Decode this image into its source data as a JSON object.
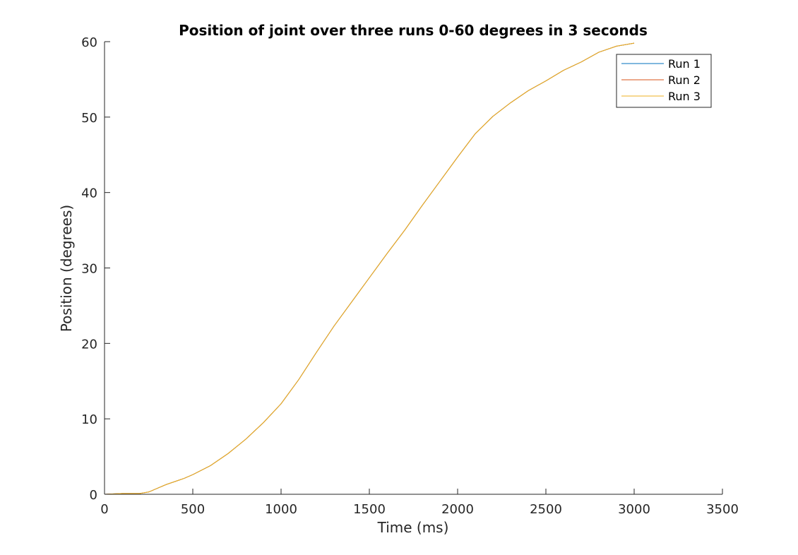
{
  "chart_data": {
    "type": "line",
    "title": "Position of joint over three runs 0-60 degrees in 3 seconds",
    "xlabel": "Time (ms)",
    "ylabel": "Position (degrees)",
    "xlim": [
      0,
      3500
    ],
    "ylim": [
      0,
      60
    ],
    "xticks": [
      0,
      500,
      1000,
      1500,
      2000,
      2500,
      3000,
      3500
    ],
    "yticks": [
      0,
      10,
      20,
      30,
      40,
      50,
      60
    ],
    "grid": false,
    "legend_position": "top-right",
    "series": [
      {
        "name": "Run 1",
        "color": "#0072BD",
        "x": [
          0,
          100,
          200,
          250,
          300,
          350,
          400,
          450,
          500,
          600,
          700,
          800,
          900,
          1000,
          1100,
          1200,
          1300,
          1400,
          1500,
          1600,
          1700,
          1800,
          1900,
          2000,
          2100,
          2200,
          2300,
          2400,
          2500,
          2600,
          2700,
          2800,
          2900,
          3000
        ],
        "y": [
          0,
          0.1,
          0.1,
          0.3,
          0.8,
          1.3,
          1.7,
          2.1,
          2.6,
          3.8,
          5.4,
          7.3,
          9.5,
          12.0,
          15.2,
          18.8,
          22.3,
          25.5,
          28.7,
          31.9,
          35.0,
          38.3,
          41.5,
          44.7,
          47.8,
          50.1,
          51.9,
          53.5,
          54.8,
          56.2,
          57.3,
          58.6,
          59.4,
          59.8
        ]
      },
      {
        "name": "Run 2",
        "color": "#D95319",
        "x": [
          0,
          100,
          200,
          250,
          300,
          350,
          400,
          450,
          500,
          600,
          700,
          800,
          900,
          1000,
          1100,
          1200,
          1300,
          1400,
          1500,
          1600,
          1700,
          1800,
          1900,
          2000,
          2100,
          2200,
          2300,
          2400,
          2500,
          2600,
          2700,
          2800,
          2900,
          3000
        ],
        "y": [
          0,
          0.1,
          0.1,
          0.3,
          0.8,
          1.3,
          1.7,
          2.1,
          2.6,
          3.8,
          5.4,
          7.3,
          9.5,
          12.0,
          15.2,
          18.8,
          22.3,
          25.5,
          28.7,
          31.9,
          35.0,
          38.3,
          41.5,
          44.7,
          47.8,
          50.1,
          51.9,
          53.5,
          54.8,
          56.2,
          57.3,
          58.6,
          59.4,
          59.8
        ]
      },
      {
        "name": "Run 3",
        "color": "#EDB120",
        "x": [
          0,
          100,
          200,
          250,
          300,
          350,
          400,
          450,
          500,
          600,
          700,
          800,
          900,
          1000,
          1100,
          1200,
          1300,
          1400,
          1500,
          1600,
          1700,
          1800,
          1900,
          2000,
          2100,
          2200,
          2300,
          2400,
          2500,
          2600,
          2700,
          2800,
          2900,
          3000
        ],
        "y": [
          0,
          0.1,
          0.1,
          0.3,
          0.8,
          1.3,
          1.7,
          2.1,
          2.6,
          3.8,
          5.4,
          7.3,
          9.5,
          12.0,
          15.2,
          18.8,
          22.3,
          25.5,
          28.7,
          31.9,
          35.0,
          38.3,
          41.5,
          44.7,
          47.8,
          50.1,
          51.9,
          53.5,
          54.8,
          56.2,
          57.3,
          58.6,
          59.4,
          59.8
        ]
      }
    ]
  }
}
